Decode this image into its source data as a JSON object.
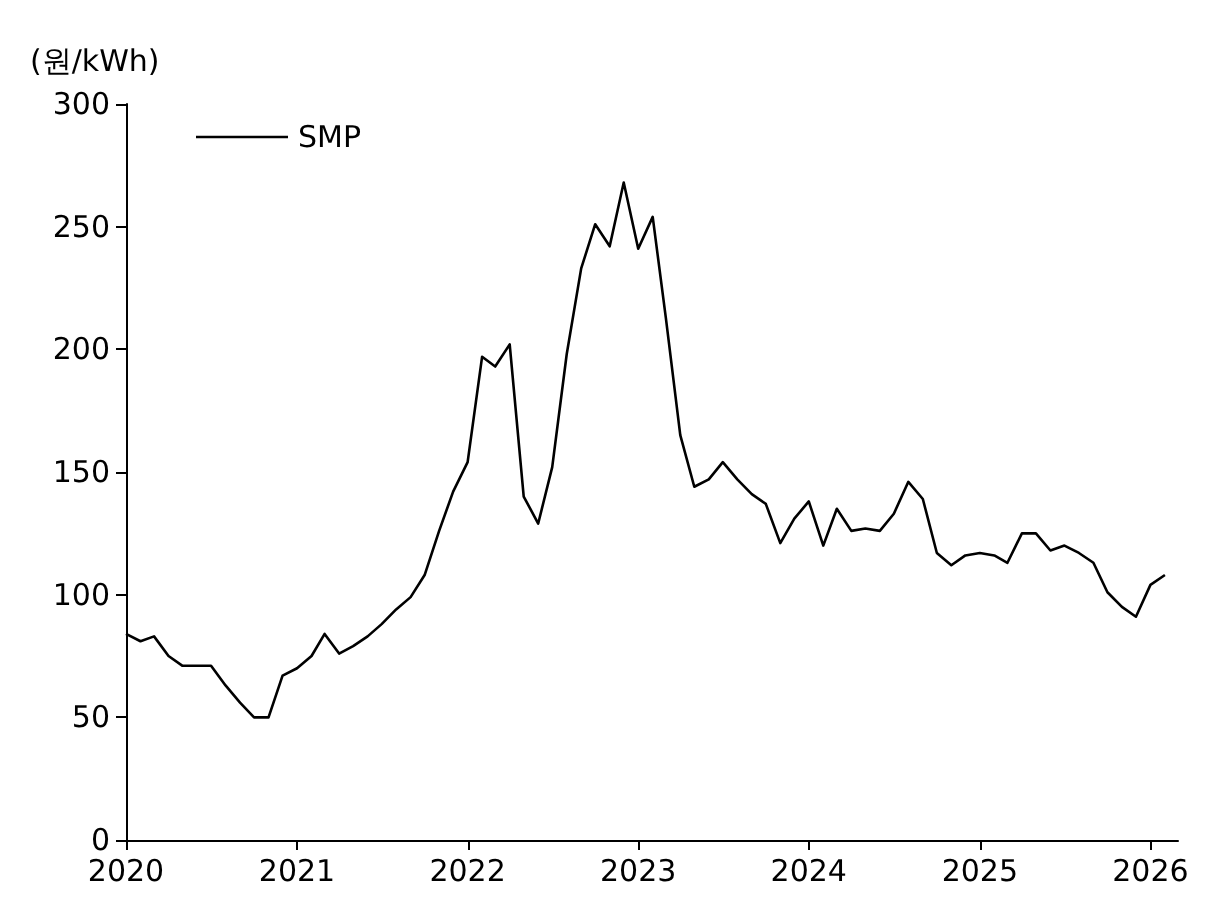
{
  "chart_data": {
    "type": "line",
    "ylabel": "(원/kWh)",
    "x": [
      "2020-01",
      "2020-02",
      "2020-03",
      "2020-04",
      "2020-05",
      "2020-06",
      "2020-07",
      "2020-08",
      "2020-09",
      "2020-10",
      "2020-11",
      "2020-12",
      "2021-01",
      "2021-02",
      "2021-03",
      "2021-04",
      "2021-05",
      "2021-06",
      "2021-07",
      "2021-08",
      "2021-09",
      "2021-10",
      "2021-11",
      "2021-12",
      "2022-01",
      "2022-02",
      "2022-03",
      "2022-04",
      "2022-05",
      "2022-06",
      "2022-07",
      "2022-08",
      "2022-09",
      "2022-10",
      "2022-11",
      "2022-12",
      "2023-01",
      "2023-02",
      "2023-03",
      "2023-04",
      "2023-05",
      "2023-06",
      "2023-07",
      "2023-08",
      "2023-09",
      "2023-10",
      "2023-11",
      "2023-12",
      "2024-01",
      "2024-02",
      "2024-03",
      "2024-04",
      "2024-05",
      "2024-06",
      "2024-07",
      "2024-08",
      "2024-09",
      "2024-10",
      "2024-11",
      "2024-12",
      "2025-01",
      "2025-02",
      "2025-03",
      "2025-04",
      "2025-05",
      "2025-06",
      "2025-07",
      "2025-08",
      "2025-09",
      "2025-10",
      "2025-11",
      "2025-12",
      "2026-01",
      "2026-02"
    ],
    "series": [
      {
        "name": "SMP",
        "color": "#000000",
        "values": [
          84,
          81,
          83,
          75,
          71,
          71,
          71,
          63,
          56,
          50,
          50,
          67,
          70,
          75,
          84,
          76,
          79,
          83,
          88,
          94,
          99,
          108,
          126,
          142,
          154,
          197,
          193,
          202,
          140,
          129,
          152,
          198,
          233,
          251,
          242,
          268,
          241,
          254,
          213,
          165,
          144,
          147,
          154,
          147,
          141,
          137,
          121,
          131,
          138,
          120,
          135,
          126,
          127,
          126,
          133,
          146,
          139,
          117,
          112,
          116,
          117,
          116,
          113,
          125,
          125,
          118,
          120,
          117,
          113,
          101,
          95,
          91,
          104,
          108
        ]
      }
    ],
    "xlim": [
      "2020-01",
      "2026-03"
    ],
    "xticks": [
      "2020",
      "2021",
      "2022",
      "2023",
      "2024",
      "2025",
      "2026"
    ],
    "ylim": [
      0,
      300
    ],
    "yticks": [
      0,
      50,
      100,
      150,
      200,
      250,
      300
    ],
    "legend": "top left",
    "grid": false,
    "marker": "none",
    "line_style": "solid"
  }
}
